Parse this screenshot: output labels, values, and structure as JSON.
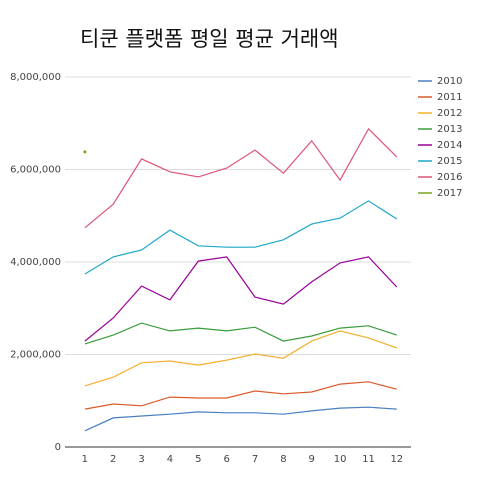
{
  "chart_data": {
    "type": "line",
    "title": "티쿤 플랫폼 평일 평균 거래액",
    "x": [
      1,
      2,
      3,
      4,
      5,
      6,
      7,
      8,
      9,
      10,
      11,
      12
    ],
    "xlim": [
      0.3,
      12.5
    ],
    "xticks": [
      1,
      2,
      3,
      4,
      5,
      6,
      7,
      8,
      9,
      10,
      11,
      12
    ],
    "ylim": [
      0,
      8000000
    ],
    "yticks": [
      {
        "value": 0,
        "label": "0"
      },
      {
        "value": 2000000,
        "label": "2,000,000"
      },
      {
        "value": 4000000,
        "label": "4,000,000"
      },
      {
        "value": 6000000,
        "label": "6,000,000"
      },
      {
        "value": 8000000,
        "label": "8,000,000"
      }
    ],
    "grid": true,
    "legend": "right",
    "series": [
      {
        "name": "2010",
        "color": "#4a7fc1",
        "values": [
          350000,
          630000,
          670000,
          710000,
          760000,
          740000,
          740000,
          710000,
          780000,
          840000,
          860000,
          820000
        ]
      },
      {
        "name": "2011",
        "color": "#dc5a2a",
        "values": [
          820000,
          930000,
          890000,
          1080000,
          1060000,
          1060000,
          1210000,
          1150000,
          1190000,
          1360000,
          1410000,
          1250000
        ]
      },
      {
        "name": "2012",
        "color": "#f4b030",
        "values": [
          1320000,
          1510000,
          1820000,
          1860000,
          1770000,
          1880000,
          2010000,
          1920000,
          2290000,
          2510000,
          2360000,
          2140000
        ]
      },
      {
        "name": "2013",
        "color": "#3a9c3a",
        "values": [
          2230000,
          2420000,
          2680000,
          2510000,
          2570000,
          2510000,
          2590000,
          2290000,
          2400000,
          2570000,
          2620000,
          2420000
        ]
      },
      {
        "name": "2014",
        "color": "#990099",
        "values": [
          2290000,
          2790000,
          3480000,
          3180000,
          4020000,
          4110000,
          3240000,
          3090000,
          3570000,
          3980000,
          4110000,
          3460000
        ]
      },
      {
        "name": "2015",
        "color": "#1ea7c8",
        "values": [
          3740000,
          4110000,
          4260000,
          4690000,
          4350000,
          4320000,
          4320000,
          4480000,
          4820000,
          4950000,
          5320000,
          4930000
        ]
      },
      {
        "name": "2016",
        "color": "#dd5577",
        "values": [
          4740000,
          5250000,
          6230000,
          5950000,
          5840000,
          6030000,
          6420000,
          5920000,
          6620000,
          5770000,
          6880000,
          6270000
        ]
      },
      {
        "name": "2017",
        "color": "#7aa31c",
        "values": [
          6380000,
          null,
          null,
          null,
          null,
          null,
          null,
          null,
          null,
          null,
          null,
          null
        ]
      }
    ]
  }
}
